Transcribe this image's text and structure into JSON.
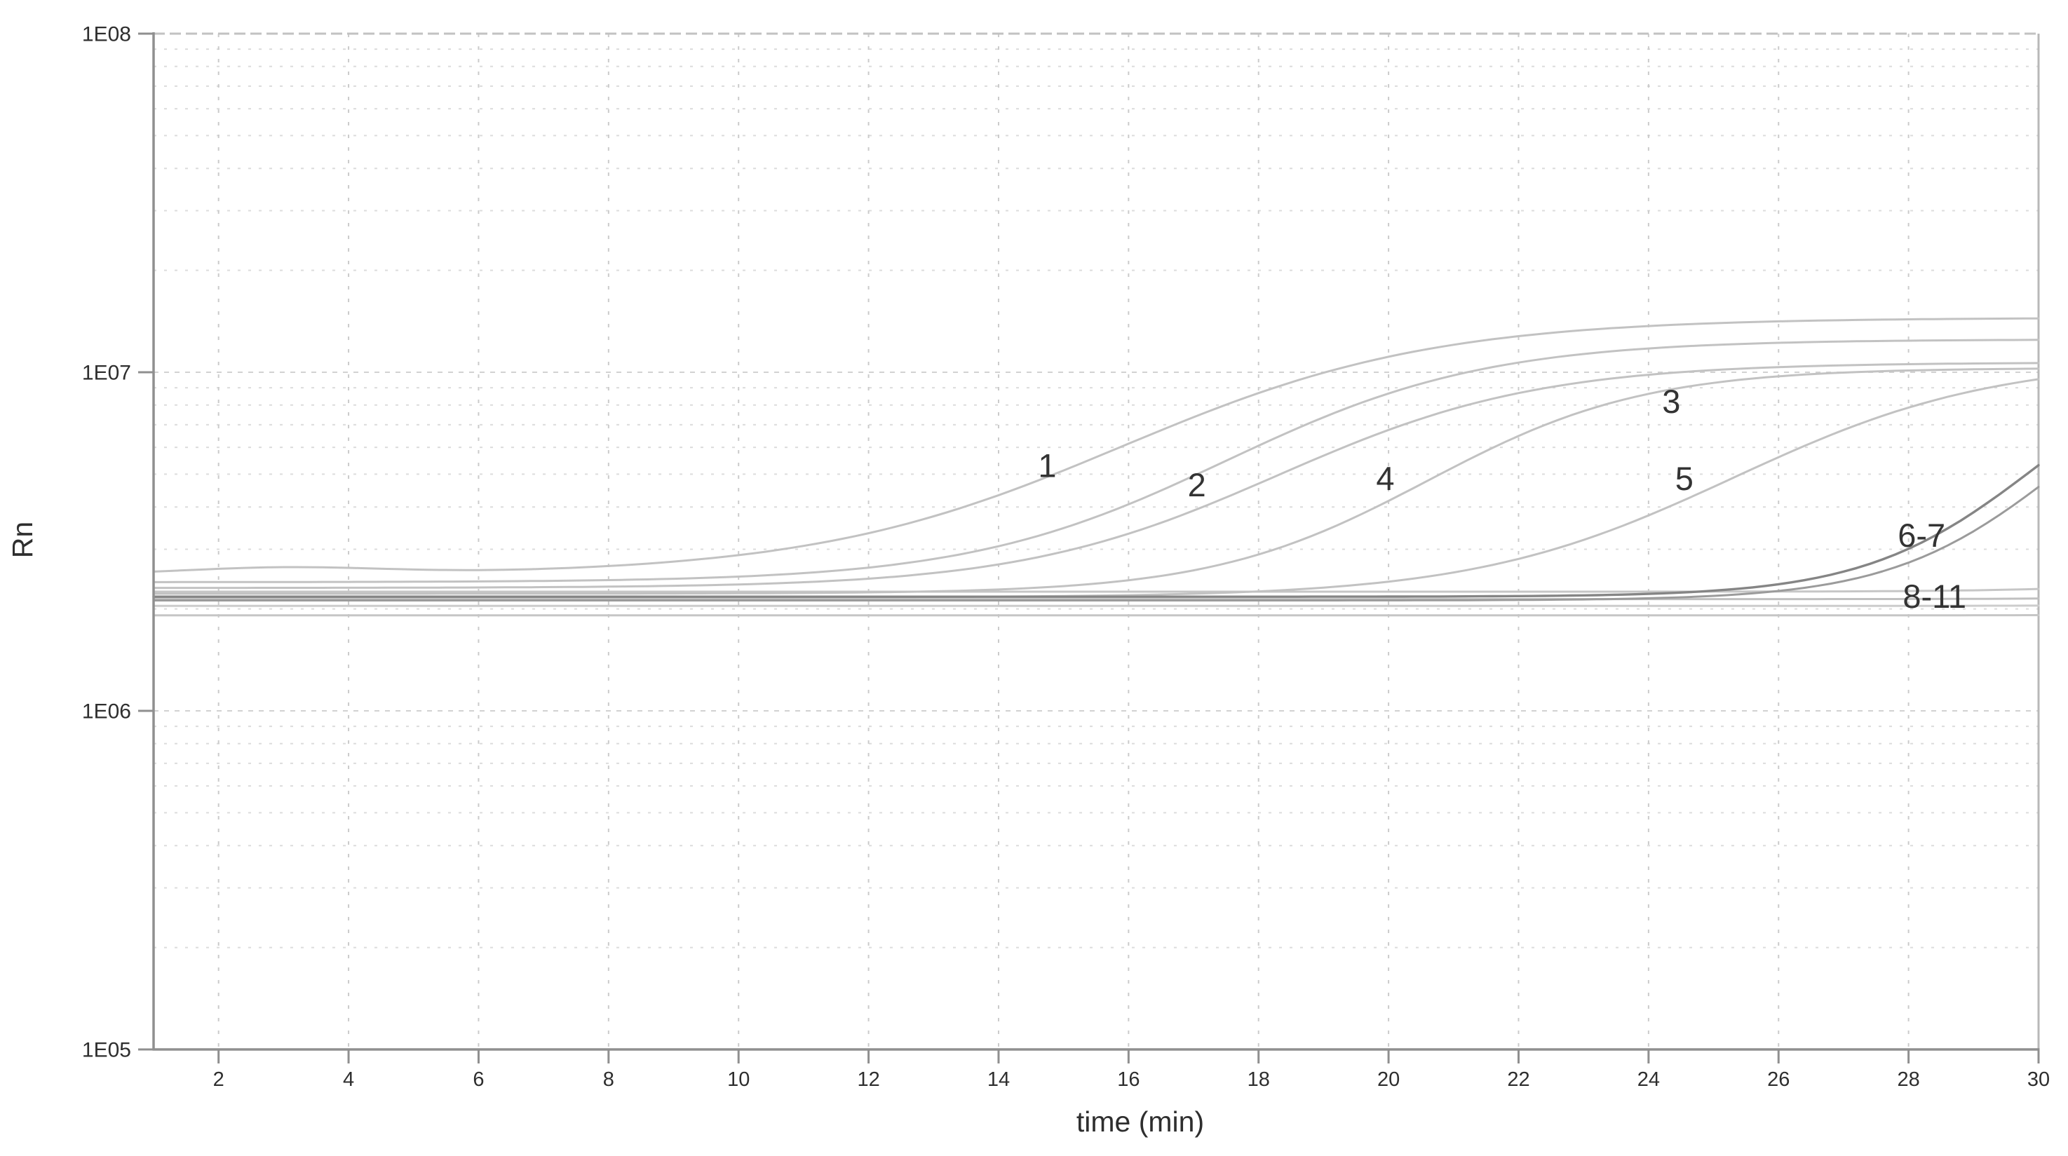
{
  "page": {
    "background": "#ffffff"
  },
  "chart_data": {
    "type": "line",
    "title": "",
    "xlabel": "time (min)",
    "ylabel": "Rn",
    "x_axis": {
      "min": 1,
      "max": 30,
      "ticks": [
        2,
        4,
        6,
        8,
        10,
        12,
        14,
        16,
        18,
        20,
        22,
        24,
        26,
        28,
        30
      ],
      "grid": "dashed vertical at every labeled tick"
    },
    "y_axis": {
      "scale": "log",
      "min": 100000,
      "max": 100000000,
      "ticks": [
        {
          "value": 100000,
          "label": "1E05"
        },
        {
          "value": 1000000,
          "label": "1E06"
        },
        {
          "value": 10000000,
          "label": "1E07"
        },
        {
          "value": 100000000,
          "label": "1E08"
        }
      ],
      "minor_grid_multiples": [
        2,
        3,
        4,
        5,
        6,
        7,
        8,
        9
      ],
      "grid": "dotted horizontal at decades and at 2-9 multiples per decade"
    },
    "model": "log10(Rn)(t) = logB + (logP - logB)/(1 + exp(-k*(t - tm))) (+ optional gaussian bump)",
    "series": [
      {
        "id": "1",
        "group_label": "1",
        "color": "#c2c2c2",
        "width": 3,
        "logB": 6.401,
        "logP": 7.161,
        "tm": 15.9,
        "k": 0.42,
        "bump": {
          "t": 3,
          "amp": 0.02,
          "sigma": 2.2
        }
      },
      {
        "id": "2",
        "group_label": "2",
        "color": "#c2c2c2",
        "width": 3,
        "logB": 6.38,
        "logP": 7.097,
        "tm": 17.5,
        "k": 0.5
      },
      {
        "id": "3",
        "group_label": "3",
        "color": "#c2c2c2",
        "width": 3,
        "logB": 6.363,
        "logP": 7.029,
        "tm": 18.3,
        "k": 0.5
      },
      {
        "id": "4",
        "group_label": "4",
        "color": "#c2c2c2",
        "width": 3,
        "logB": 6.346,
        "logP": 7.013,
        "tm": 20.6,
        "k": 0.6
      },
      {
        "id": "5",
        "group_label": "5",
        "color": "#c2c2c2",
        "width": 3,
        "logB": 6.335,
        "logP": 7.041,
        "tm": 25.3,
        "k": 0.5
      },
      {
        "id": "6",
        "group_label": "6-7",
        "color": "#858585",
        "width": 3.4,
        "logB": 6.337,
        "logP": 7.114,
        "tm": 30.0,
        "k": 0.75
      },
      {
        "id": "7",
        "group_label": "6-7",
        "color": "#9b9b9b",
        "width": 3,
        "logB": 6.326,
        "logP": 7.114,
        "tm": 30.4,
        "k": 0.75
      },
      {
        "id": "8",
        "group_label": "8-11",
        "color": "#c6c6c6",
        "width": 3,
        "logB": 6.352,
        "logP": 6.4,
        "tm": 32.0,
        "k": 0.8
      },
      {
        "id": "9",
        "group_label": "8-11",
        "color": "#c0c0c0",
        "width": 3,
        "logB": 6.33,
        "logP": 6.35,
        "tm": 33.0,
        "k": 0.8
      },
      {
        "id": "10",
        "group_label": "8-11",
        "color": "#cccccc",
        "width": 3,
        "logB": 6.31,
        "logP": 6.32,
        "tm": 33.0,
        "k": 0.8
      },
      {
        "id": "11",
        "group_label": "8-11",
        "color": "#c6c6c6",
        "width": 3,
        "logB": 6.282,
        "logP": 6.29,
        "tm": 33.0,
        "k": 0.8
      }
    ],
    "curve_labels": [
      {
        "text": "1",
        "t": 14.75,
        "value": 5300000
      },
      {
        "text": "2",
        "t": 17.05,
        "value": 4650000
      },
      {
        "text": "3",
        "t": 24.35,
        "value": 8200000
      },
      {
        "text": "4",
        "t": 19.95,
        "value": 4850000
      },
      {
        "text": "5",
        "t": 24.55,
        "value": 4850000
      },
      {
        "text": "6-7",
        "t": 28.2,
        "value": 3300000
      },
      {
        "text": "8-11",
        "t": 28.4,
        "value": 2180000
      }
    ],
    "legend": "none",
    "style_colors": {
      "axis": "#8f8f8f",
      "frame_top": "#c2c2c2",
      "frame_right": "#b8b8b8",
      "grid_horizontal_minor": "#dcdcdc",
      "grid_horizontal_decade": "#d2d2d2",
      "grid_vertical": "#cbcbcb",
      "tick_text": "#2e2e2e",
      "curve_label_text": "#333333"
    }
  }
}
